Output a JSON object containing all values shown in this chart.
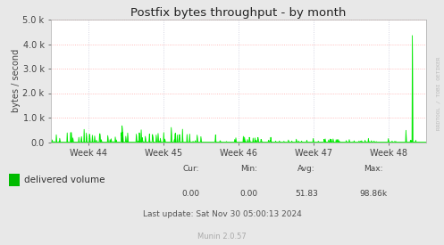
{
  "title": "Postfix bytes throughput - by month",
  "ylabel": "bytes / second",
  "background_color": "#E8E8E8",
  "plot_bg_color": "#FFFFFF",
  "grid_color_h": "#FFAAAA",
  "grid_color_v": "#CCCCDD",
  "line_color": "#00EE00",
  "fill_color": "#00BB00",
  "x_tick_labels": [
    "Week 44",
    "Week 45",
    "Week 46",
    "Week 47",
    "Week 48"
  ],
  "ylim": [
    0,
    5000
  ],
  "yticks": [
    0,
    1000,
    2000,
    3000,
    4000,
    5000
  ],
  "legend_label": "delivered volume",
  "legend_color": "#00BB00",
  "cur_val": "0.00",
  "min_val": "0.00",
  "avg_val": "51.83",
  "max_val": "98.86k",
  "last_update": "Last update: Sat Nov 30 05:00:13 2024",
  "munin_version": "Munin 2.0.57",
  "watermark": "RRDTOOL / TOBI OETIKER",
  "title_fontsize": 9.5,
  "axis_fontsize": 7,
  "tick_fontsize": 7,
  "legend_fontsize": 7.5,
  "footer_fontsize": 6.5
}
